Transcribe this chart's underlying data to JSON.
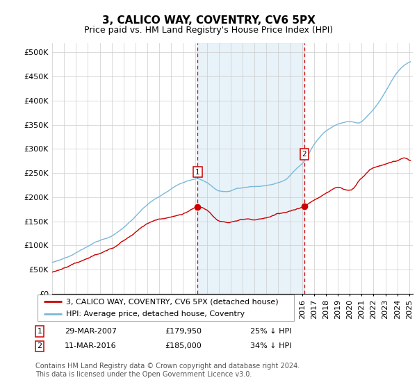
{
  "title": "3, CALICO WAY, COVENTRY, CV6 5PX",
  "subtitle": "Price paid vs. HM Land Registry's House Price Index (HPI)",
  "ylabel_ticks": [
    "£0",
    "£50K",
    "£100K",
    "£150K",
    "£200K",
    "£250K",
    "£300K",
    "£350K",
    "£400K",
    "£450K",
    "£500K"
  ],
  "ytick_values": [
    0,
    50000,
    100000,
    150000,
    200000,
    250000,
    300000,
    350000,
    400000,
    450000,
    500000
  ],
  "ylim": [
    0,
    520000
  ],
  "xlim_start": 1995.0,
  "xlim_end": 2025.3,
  "hpi_color": "#7ab8d9",
  "price_color": "#cc0000",
  "vline_color": "#cc0000",
  "shade_color": "#daeaf5",
  "legend_entry1": "3, CALICO WAY, COVENTRY, CV6 5PX (detached house)",
  "legend_entry2": "HPI: Average price, detached house, Coventry",
  "marker1_date": 2007.23,
  "marker1_price": 179950,
  "marker1_hpi_price": 240000,
  "marker1_label": "1",
  "marker1_text": "29-MAR-2007",
  "marker1_value": "£179,950",
  "marker1_hpi": "25% ↓ HPI",
  "marker2_date": 2016.19,
  "marker2_price": 185000,
  "marker2_hpi_price": 276000,
  "marker2_label": "2",
  "marker2_text": "11-MAR-2016",
  "marker2_value": "£185,000",
  "marker2_hpi": "34% ↓ HPI",
  "footer": "Contains HM Land Registry data © Crown copyright and database right 2024.\nThis data is licensed under the Open Government Licence v3.0.",
  "title_fontsize": 11,
  "subtitle_fontsize": 9,
  "tick_fontsize": 8,
  "legend_fontsize": 8,
  "footer_fontsize": 7
}
